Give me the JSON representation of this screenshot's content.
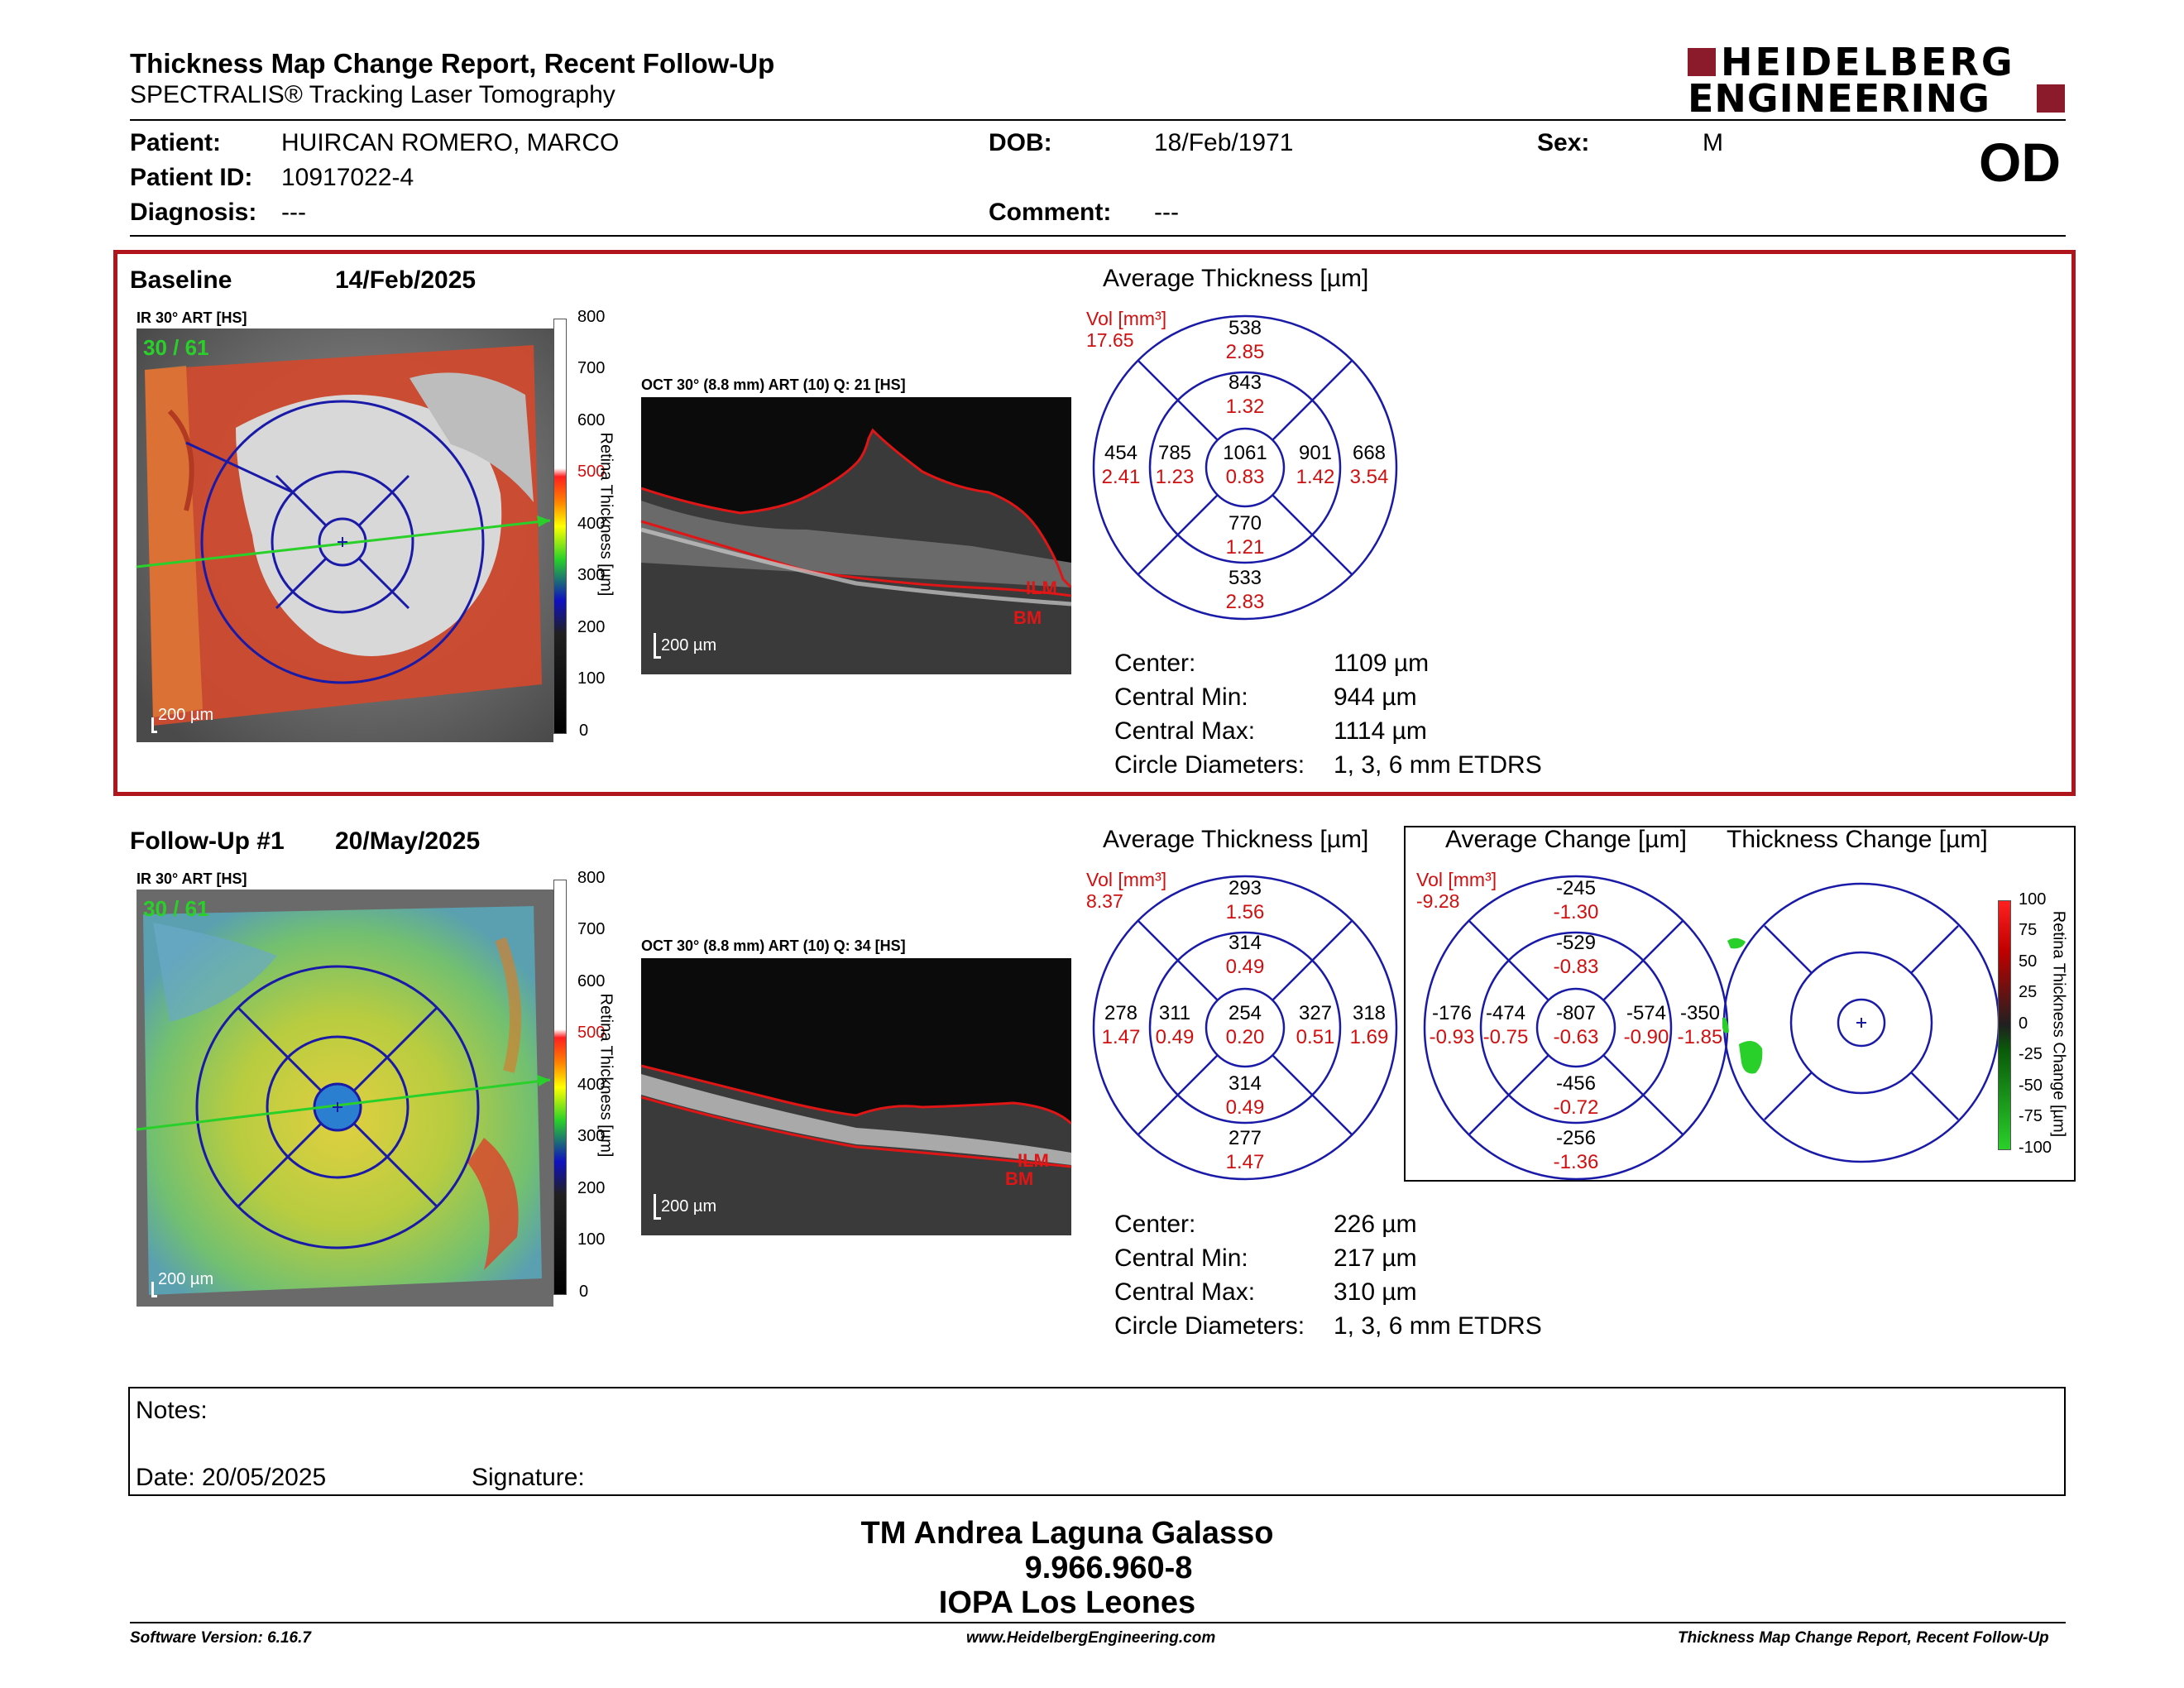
{
  "header": {
    "title": "Thickness Map Change Report, Recent Follow-Up",
    "subtitle": "SPECTRALIS® Tracking Laser Tomography",
    "brand_line1": "HEIDELBERG",
    "brand_line2": "ENGINEERING",
    "eye": "OD"
  },
  "patient": {
    "patient_label": "Patient:",
    "patient_value": "HUIRCAN ROMERO, MARCO",
    "id_label": "Patient ID:",
    "id_value": "10917022-4",
    "diagnosis_label": "Diagnosis:",
    "diagnosis_value": "---",
    "dob_label": "DOB:",
    "dob_value": "18/Feb/1971",
    "comment_label": "Comment:",
    "comment_value": "---",
    "sex_label": "Sex:",
    "sex_value": "M"
  },
  "baseline": {
    "label": "Baseline",
    "date": "14/Feb/2025",
    "ir_label": "IR 30° ART [HS]",
    "ir_counter": "30 / 61",
    "scale_label": "200 µm",
    "oct_label": "OCT 30° (8.8 mm) ART (10) Q: 21 [HS]",
    "oct_scale": "200 µm",
    "ilm": "ILM",
    "bm": "BM",
    "avg_title": "Average Thickness [µm]",
    "vol_label": "Vol [mm³]",
    "vol_value": "17.65",
    "sectors": {
      "outer_top": [
        "538",
        "2.85"
      ],
      "inner_top": [
        "843",
        "1.32"
      ],
      "outer_left": [
        "454",
        "2.41"
      ],
      "inner_left": [
        "785",
        "1.23"
      ],
      "center": [
        "1061",
        "0.83"
      ],
      "inner_right": [
        "901",
        "1.42"
      ],
      "outer_right": [
        "668",
        "3.54"
      ],
      "inner_bottom": [
        "770",
        "1.21"
      ],
      "outer_bottom": [
        "533",
        "2.83"
      ]
    },
    "stats": {
      "center_label": "Center:",
      "center_value": "1109 µm",
      "min_label": "Central Min:",
      "min_value": "944 µm",
      "max_label": "Central Max:",
      "max_value": "1114 µm",
      "diam_label": "Circle Diameters:",
      "diam_value": "1, 3, 6 mm ETDRS"
    }
  },
  "followup": {
    "label": "Follow-Up #1",
    "date": "20/May/2025",
    "ir_label": "IR 30° ART [HS]",
    "ir_counter": "30 / 61",
    "scale_label": "200 µm",
    "oct_label": "OCT 30° (8.8 mm) ART (10) Q: 34 [HS]",
    "oct_scale": "200 µm",
    "ilm": "ILM",
    "bm": "BM",
    "avg_title": "Average Thickness [µm]",
    "vol_label": "Vol [mm³]",
    "vol_value": "8.37",
    "sectors": {
      "outer_top": [
        "293",
        "1.56"
      ],
      "inner_top": [
        "314",
        "0.49"
      ],
      "outer_left": [
        "278",
        "1.47"
      ],
      "inner_left": [
        "311",
        "0.49"
      ],
      "center": [
        "254",
        "0.20"
      ],
      "inner_right": [
        "327",
        "0.51"
      ],
      "outer_right": [
        "318",
        "1.69"
      ],
      "inner_bottom": [
        "314",
        "0.49"
      ],
      "outer_bottom": [
        "277",
        "1.47"
      ]
    },
    "change_title": "Average Change [µm]",
    "change_vol_label": "Vol [mm³]",
    "change_vol_value": "-9.28",
    "change_sectors": {
      "outer_top": [
        "-245",
        "-1.30"
      ],
      "inner_top": [
        "-529",
        "-0.83"
      ],
      "outer_left": [
        "-176",
        "-0.93"
      ],
      "inner_left": [
        "-474",
        "-0.75"
      ],
      "center": [
        "-807",
        "-0.63"
      ],
      "inner_right": [
        "-574",
        "-0.90"
      ],
      "outer_right": [
        "-350",
        "-1.85"
      ],
      "inner_bottom": [
        "-456",
        "-0.72"
      ],
      "outer_bottom": [
        "-256",
        "-1.36"
      ]
    },
    "thick_change_title": "Thickness Change [µm]",
    "change_scale_label": "Retina Thickness Change [µm]",
    "change_scale_ticks": [
      "100",
      "75",
      "50",
      "25",
      "0",
      "-25",
      "-50",
      "-75",
      "-100"
    ],
    "stats": {
      "center_label": "Center:",
      "center_value": "226 µm",
      "min_label": "Central Min:",
      "min_value": "217 µm",
      "max_label": "Central Max:",
      "max_value": "310 µm",
      "diam_label": "Circle Diameters:",
      "diam_value": "1, 3, 6 mm ETDRS"
    }
  },
  "thickness_scale": {
    "label": "Retina Thickness [µm]",
    "ticks": [
      "800",
      "700",
      "600",
      "500",
      "400",
      "300",
      "200",
      "100",
      "0"
    ]
  },
  "notes": {
    "notes_label": "Notes:",
    "date_label": "Date: 20/05/2025",
    "signature_label": "Signature:"
  },
  "signature": {
    "name": "TM Andrea Laguna Galasso",
    "id": "9.966.960-8",
    "place": "IOPA Los Leones"
  },
  "footer": {
    "version": "Software Version: 6.16.7",
    "url": "www.HeidelbergEngineering.com",
    "report": "Thickness Map Change Report, Recent Follow-Up"
  },
  "colors": {
    "accent_red": "#b0151c",
    "brand_red": "#8b1a2b",
    "circle_blue": "#1a1aa8",
    "value_red": "#d01010"
  }
}
